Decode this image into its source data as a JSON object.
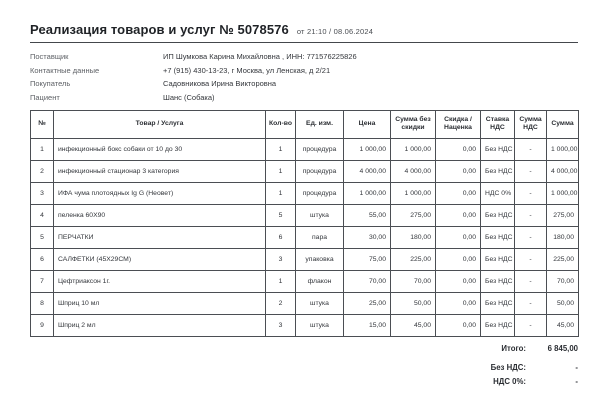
{
  "header": {
    "title": "Реализация товаров и услуг № 5078576",
    "date_label": "от 21:10 / 08.06.2024"
  },
  "info": {
    "rows": [
      {
        "label": "Поставщик",
        "value": "ИП Шумкова Карина Михайловна , ИНН: 771576225826"
      },
      {
        "label": "Контактные данные",
        "value": "+7 (915) 430-13-23, г Москва, ул Ленская, д 2/21"
      },
      {
        "label": "Покупатель",
        "value": "Садовникова Ирина Викторовна"
      },
      {
        "label": "Пациент",
        "value": "Шанс (Собака)"
      }
    ]
  },
  "table": {
    "columns": [
      "№",
      "Товар / Услуга",
      "Кол-во",
      "Ед. изм.",
      "Цена",
      "Сумма без скидки",
      "Скидка / Наценка",
      "Ставка НДС",
      "Сумма НДС",
      "Сумма"
    ],
    "rows": [
      [
        "1",
        "инфекционный бокс собаки от 10 до 30",
        "1",
        "процедура",
        "1 000,00",
        "1 000,00",
        "0,00",
        "Без НДС",
        "-",
        "1 000,00"
      ],
      [
        "2",
        "инфекционный стационар 3 категория",
        "1",
        "процедура",
        "4 000,00",
        "4 000,00",
        "0,00",
        "Без НДС",
        "-",
        "4 000,00"
      ],
      [
        "3",
        "ИФА чума плотоядных Ig G (Неовет)",
        "1",
        "процедура",
        "1 000,00",
        "1 000,00",
        "0,00",
        "НДС 0%",
        "-",
        "1 000,00"
      ],
      [
        "4",
        "пеленка 60Х90",
        "5",
        "штука",
        "55,00",
        "275,00",
        "0,00",
        "Без НДС",
        "-",
        "275,00"
      ],
      [
        "5",
        "ПЕРЧАТКИ",
        "6",
        "пара",
        "30,00",
        "180,00",
        "0,00",
        "Без НДС",
        "-",
        "180,00"
      ],
      [
        "6",
        "САЛФЕТКИ (45Х29СМ)",
        "3",
        "упаковка",
        "75,00",
        "225,00",
        "0,00",
        "Без НДС",
        "-",
        "225,00"
      ],
      [
        "7",
        "Цефтриаксон 1г.",
        "1",
        "флакон",
        "70,00",
        "70,00",
        "0,00",
        "Без НДС",
        "-",
        "70,00"
      ],
      [
        "8",
        "Шприц 10 мл",
        "2",
        "штука",
        "25,00",
        "50,00",
        "0,00",
        "Без НДС",
        "-",
        "50,00"
      ],
      [
        "9",
        "Шприц 2 мл",
        "3",
        "штука",
        "15,00",
        "45,00",
        "0,00",
        "Без НДС",
        "-",
        "45,00"
      ]
    ]
  },
  "totals": [
    {
      "label": "Итого:",
      "value": "6 845,00"
    },
    {
      "label": "Без НДС:",
      "value": "-"
    },
    {
      "label": "НДС 0%:",
      "value": "-"
    }
  ]
}
